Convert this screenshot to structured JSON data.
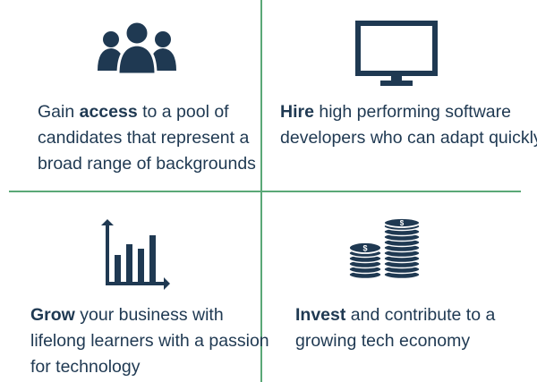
{
  "colors": {
    "primary": "#1f3952",
    "divider": "#5aa877",
    "background": "#ffffff"
  },
  "quadrants": [
    {
      "icon": "people-group-icon",
      "lines": [
        {
          "pre": "Gain ",
          "bold": "access",
          "post": " to a pool of"
        },
        {
          "text": "candidates that represent a"
        },
        {
          "text": "broad range of backgrounds"
        }
      ]
    },
    {
      "icon": "monitor-icon",
      "lines": [
        {
          "bold": "Hire",
          "post": " high performing software"
        },
        {
          "text": "developers who can adapt quickly"
        }
      ]
    },
    {
      "icon": "growth-chart-icon",
      "lines": [
        {
          "bold": "Grow",
          "post": " your business with"
        },
        {
          "text": "lifelong learners with a passion"
        },
        {
          "text": "for technology"
        }
      ]
    },
    {
      "icon": "coin-stacks-icon",
      "lines": [
        {
          "bold": "Invest",
          "post": " and contribute to a"
        },
        {
          "text": "growing tech economy"
        }
      ]
    }
  ]
}
